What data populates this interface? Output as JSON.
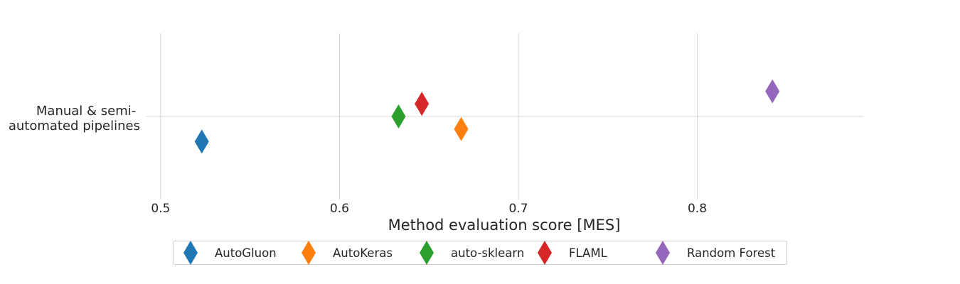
{
  "chart_data": {
    "type": "scatter",
    "xlabel": "Method evaluation score [MES]",
    "ylabel": "",
    "xlim": [
      0.4917,
      0.8932
    ],
    "x_ticks": [
      0.5,
      0.6,
      0.7,
      0.8
    ],
    "x_tick_labels": [
      "0.5",
      "0.6",
      "0.7",
      "0.8"
    ],
    "categories": [
      "Manual & semi-automated pipelines"
    ],
    "category_label_lines": [
      "Manual & semi-",
      "automated pipelines"
    ],
    "grid": true,
    "marker": "diamond",
    "legend_position": "bottom-center",
    "series": [
      {
        "name": "AutoGluon",
        "color": "#1f77b4",
        "x": 0.523,
        "offset": -0.3
      },
      {
        "name": "AutoKeras",
        "color": "#ff7f0e",
        "x": 0.668,
        "offset": -0.15
      },
      {
        "name": "auto-sklearn",
        "color": "#2ca02c",
        "x": 0.633,
        "offset": 0.0
      },
      {
        "name": "FLAML",
        "color": "#d62728",
        "x": 0.646,
        "offset": 0.15
      },
      {
        "name": "Random Forest",
        "color": "#9467bd",
        "x": 0.842,
        "offset": 0.3
      }
    ]
  }
}
